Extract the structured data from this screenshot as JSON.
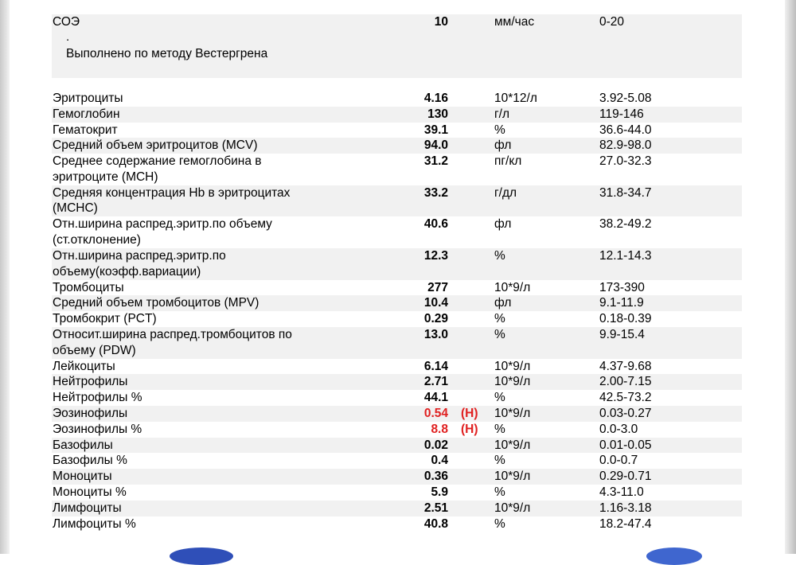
{
  "soe": {
    "name": "СОЭ",
    "value": "10",
    "unit": "мм/час",
    "ref": "0-20",
    "dot": ".",
    "note": "Выполнено по методу Вестергрена"
  },
  "rows": [
    {
      "name": [
        "Эритроциты"
      ],
      "value": "4.16",
      "flag": "",
      "unit": "10*12/л",
      "ref": "3.92-5.08"
    },
    {
      "name": [
        "Гемоглобин"
      ],
      "value": "130",
      "flag": "",
      "unit": "г/л",
      "ref": "119-146"
    },
    {
      "name": [
        "Гематокрит"
      ],
      "value": "39.1",
      "flag": "",
      "unit": "%",
      "ref": "36.6-44.0"
    },
    {
      "name": [
        "Средний объем эритроцитов (MCV)"
      ],
      "value": "94.0",
      "flag": "",
      "unit": "фл",
      "ref": "82.9-98.0"
    },
    {
      "name": [
        "Среднее содержание гемоглобина в",
        "эритроците (MCH)"
      ],
      "value": "31.2",
      "flag": "",
      "unit": "пг/кл",
      "ref": "27.0-32.3"
    },
    {
      "name": [
        "Средняя концентрация Hb в эритроцитах",
        "(MCHC)"
      ],
      "value": "33.2",
      "flag": "",
      "unit": "г/дл",
      "ref": "31.8-34.7"
    },
    {
      "name": [
        "Отн.ширина распред.эритр.по объему",
        "(ст.отклонение)"
      ],
      "value": "40.6",
      "flag": "",
      "unit": "фл",
      "ref": "38.2-49.2"
    },
    {
      "name": [
        "Отн.ширина распред.эритр.по",
        "объему(коэфф.вариации)"
      ],
      "value": "12.3",
      "flag": "",
      "unit": "%",
      "ref": "12.1-14.3"
    },
    {
      "name": [
        "Тромбоциты"
      ],
      "value": "277",
      "flag": "",
      "unit": "10*9/л",
      "ref": "173-390"
    },
    {
      "name": [
        "Средний объем тромбоцитов (MPV)"
      ],
      "value": "10.4",
      "flag": "",
      "unit": "фл",
      "ref": "9.1-11.9"
    },
    {
      "name": [
        "Тромбокрит (PCT)"
      ],
      "value": "0.29",
      "flag": "",
      "unit": "%",
      "ref": "0.18-0.39"
    },
    {
      "name": [
        "Относит.ширина распред.тромбоцитов по",
        "объему (PDW)"
      ],
      "value": "13.0",
      "flag": "",
      "unit": "%",
      "ref": "9.9-15.4"
    },
    {
      "name": [
        "Лейкоциты"
      ],
      "value": "6.14",
      "flag": "",
      "unit": "10*9/л",
      "ref": "4.37-9.68"
    },
    {
      "name": [
        "Нейтрофилы"
      ],
      "value": "2.71",
      "flag": "",
      "unit": "10*9/л",
      "ref": "2.00-7.15"
    },
    {
      "name": [
        "Нейтрофилы %"
      ],
      "value": "44.1",
      "flag": "",
      "unit": "%",
      "ref": "42.5-73.2"
    },
    {
      "name": [
        "Эозинофилы"
      ],
      "value": "0.54",
      "flag": "(H)",
      "unit": "10*9/л",
      "ref": "0.03-0.27"
    },
    {
      "name": [
        "Эозинофилы %"
      ],
      "value": "8.8",
      "flag": "(H)",
      "unit": "%",
      "ref": "0.0-3.0"
    },
    {
      "name": [
        "Базофилы"
      ],
      "value": "0.02",
      "flag": "",
      "unit": "10*9/л",
      "ref": "0.01-0.05"
    },
    {
      "name": [
        "Базофилы %"
      ],
      "value": "0.4",
      "flag": "",
      "unit": "%",
      "ref": "0.0-0.7"
    },
    {
      "name": [
        "Моноциты"
      ],
      "value": "0.36",
      "flag": "",
      "unit": "10*9/л",
      "ref": "0.29-0.71"
    },
    {
      "name": [
        "Моноциты %"
      ],
      "value": "5.9",
      "flag": "",
      "unit": "%",
      "ref": "4.3-11.0"
    },
    {
      "name": [
        "Лимфоциты"
      ],
      "value": "2.51",
      "flag": "",
      "unit": "10*9/л",
      "ref": "1.16-3.18"
    },
    {
      "name": [
        "Лимфоциты %"
      ],
      "value": "40.8",
      "flag": "",
      "unit": "%",
      "ref": "18.2-47.4"
    }
  ],
  "colors": {
    "abnormal": "#e02020",
    "row_shade": "#f1f1f1"
  }
}
